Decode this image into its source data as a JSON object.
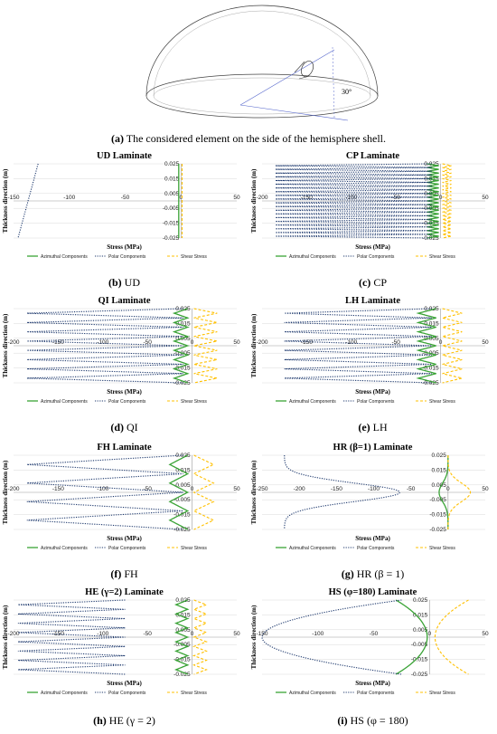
{
  "figure": {
    "main_caption_label": "(a)",
    "main_caption_text": " The considered element on the side of the hemisphere shell.",
    "angle_label": "30°",
    "colors": {
      "azimuthal": "#3aa336",
      "polar": "#1f3a6e",
      "shear": "#ffc000",
      "grid": "#d9d9d9"
    }
  },
  "chart_data": [
    {
      "id": "b",
      "caption_label": "(b)",
      "caption_text": " UD",
      "title": "UD Laminate",
      "type": "line",
      "xlabel": "Stress (MPa)",
      "ylabel": "Thickness direction (m)",
      "xlim": [
        -150,
        50
      ],
      "ylim": [
        -0.025,
        0.025
      ],
      "xticks": [
        "-150",
        "-100",
        "-50",
        "0",
        "50"
      ],
      "yticks": [
        "0.025",
        "0.015",
        "0.005",
        "-0.005",
        "-0.015",
        "-0.025"
      ],
      "legend": [
        "Azimuthal Components",
        "Polar Components",
        "Shear Stress"
      ],
      "series": [
        {
          "name": "Azimuthal Components",
          "profile": "const",
          "value": -2
        },
        {
          "name": "Polar Components",
          "profile": "linear",
          "x_at_top": -128,
          "x_at_bottom": -146
        },
        {
          "name": "Shear Stress",
          "profile": "const",
          "value": 1
        }
      ]
    },
    {
      "id": "c",
      "caption_label": "(c)",
      "caption_text": " CP",
      "title": "CP Laminate",
      "type": "line",
      "xlabel": "Stress (MPa)",
      "ylabel": "Thickness direction (m)",
      "xlim": [
        -200,
        50
      ],
      "ylim": [
        -0.025,
        0.025
      ],
      "xticks": [
        "-200",
        "-150",
        "-100",
        "-50",
        "0",
        "50"
      ],
      "yticks": [
        "0.025",
        "0.015",
        "0.005",
        "-0.005",
        "-0.015",
        "-0.025"
      ],
      "legend": [
        "Azimuthal Components",
        "Polar Components",
        "Shear Stress"
      ],
      "series": [
        {
          "name": "Azimuthal Components",
          "profile": "zigzag",
          "base": -15,
          "peak": -2,
          "plies": 20
        },
        {
          "name": "Polar Components",
          "profile": "zigzag",
          "base": -10,
          "peak": -185,
          "plies": 20
        },
        {
          "name": "Shear Stress",
          "profile": "zigzag",
          "base": 2,
          "peak": 12,
          "plies": 20
        }
      ]
    },
    {
      "id": "d",
      "caption_label": "(d)",
      "caption_text": " QI",
      "title": "QI Laminate",
      "type": "line",
      "xlabel": "Stress (MPa)",
      "ylabel": "Thickness direction (m)",
      "xlim": [
        -200,
        50
      ],
      "ylim": [
        -0.025,
        0.025
      ],
      "xticks": [
        "-200",
        "-150",
        "-100",
        "-50",
        "0",
        "50"
      ],
      "yticks": [
        "0.025",
        "0.015",
        "0.005",
        "-0.005",
        "-0.015",
        "-0.025"
      ],
      "legend": [
        "Azimuthal Components",
        "Polar Components",
        "Shear Stress"
      ],
      "series": [
        {
          "name": "Azimuthal Components",
          "profile": "zigzag",
          "base": -5,
          "peak": -20,
          "plies": 8
        },
        {
          "name": "Polar Components",
          "profile": "zigzag",
          "base": -10,
          "peak": -185,
          "plies": 8
        },
        {
          "name": "Shear Stress",
          "profile": "zigzag",
          "base": 2,
          "peak": 28,
          "plies": 8
        }
      ]
    },
    {
      "id": "e",
      "caption_label": "(e)",
      "caption_text": " LH",
      "title": "LH Laminate",
      "type": "line",
      "xlabel": "Stress (MPa)",
      "ylabel": "Thickness direction (m)",
      "xlim": [
        -200,
        50
      ],
      "ylim": [
        -0.025,
        0.025
      ],
      "xticks": [
        "-200",
        "-150",
        "-100",
        "-50",
        "0",
        "50"
      ],
      "yticks": [
        "0.025",
        "0.015",
        "0.005",
        "-0.005",
        "-0.015",
        "-0.025"
      ],
      "legend": [
        "Azimuthal Components",
        "Polar Components",
        "Shear Stress"
      ],
      "series": [
        {
          "name": "Azimuthal Components",
          "profile": "zigzag",
          "base": -5,
          "peak": -25,
          "plies": 8
        },
        {
          "name": "Polar Components",
          "profile": "zigzag",
          "base": -10,
          "peak": -175,
          "plies": 8
        },
        {
          "name": "Shear Stress",
          "profile": "zigzag",
          "base": 2,
          "peak": 24,
          "plies": 8
        }
      ]
    },
    {
      "id": "f",
      "caption_label": "(f)",
      "caption_text": " FH",
      "title": "FH Laminate",
      "type": "line",
      "xlabel": "Stress (MPa)",
      "ylabel": "Thickness direction (m)",
      "xlim": [
        -200,
        50
      ],
      "ylim": [
        -0.025,
        0.025
      ],
      "xticks": [
        "-200",
        "-150",
        "-100",
        "-50",
        "0",
        "50"
      ],
      "yticks": [
        "0.025",
        "0.015",
        "0.005",
        "-0.005",
        "-0.015",
        "-0.025"
      ],
      "legend": [
        "Azimuthal Components",
        "Polar Components",
        "Shear Stress"
      ],
      "series": [
        {
          "name": "Azimuthal Components",
          "profile": "zigzag",
          "base": -5,
          "peak": -25,
          "plies": 4
        },
        {
          "name": "Polar Components",
          "profile": "zigzag",
          "base": -10,
          "peak": -185,
          "plies": 4
        },
        {
          "name": "Shear Stress",
          "profile": "zigzag",
          "base": 2,
          "peak": 24,
          "plies": 4
        }
      ]
    },
    {
      "id": "g",
      "caption_label": "(g)",
      "caption_text": " HR (β = 1)",
      "title": "HR (β=1) Laminate",
      "type": "line",
      "xlabel": "Stress (MPa)",
      "ylabel": "Thickness direction (m)",
      "xlim": [
        -250,
        50
      ],
      "ylim": [
        -0.025,
        0.025
      ],
      "xticks": [
        "-250",
        "-200",
        "-150",
        "-100",
        "-50",
        "0",
        "50"
      ],
      "yticks": [
        "0.025",
        "0.015",
        "0.005",
        "-0.005",
        "-0.015",
        "-0.025"
      ],
      "legend": [
        "Azimuthal Components",
        "Polar Components",
        "Shear Stress"
      ],
      "series": [
        {
          "name": "Azimuthal Components",
          "profile": "bump",
          "base": 0,
          "peak": -12
        },
        {
          "name": "Polar Components",
          "profile": "bump",
          "base": -220,
          "peak": -65
        },
        {
          "name": "Shear Stress",
          "profile": "bump",
          "base": 0,
          "peak": 30
        }
      ]
    },
    {
      "id": "h",
      "caption_label": "(h)",
      "caption_text": " HE (γ = 2)",
      "title": "HE (γ=2) Laminate",
      "type": "line",
      "xlabel": "Stress (MPa)",
      "ylabel": "Thickness direction (m)",
      "xlim": [
        -200,
        50
      ],
      "ylim": [
        -0.025,
        0.025
      ],
      "xticks": [
        "-200",
        "-150",
        "-100",
        "-50",
        "0",
        "50"
      ],
      "yticks": [
        "0.025",
        "0.015",
        "0.005",
        "-0.005",
        "-0.015",
        "-0.025"
      ],
      "legend": [
        "Azimuthal Components",
        "Polar Components",
        "Shear Stress"
      ],
      "series": [
        {
          "name": "Azimuthal Components",
          "profile": "zigzag",
          "base": -5,
          "peak": -18,
          "plies": 8
        },
        {
          "name": "Polar Components",
          "profile": "zigzag",
          "base": -75,
          "peak": -195,
          "plies": 8
        },
        {
          "name": "Shear Stress",
          "profile": "zigzag",
          "base": 2,
          "peak": 16,
          "plies": 8
        }
      ]
    },
    {
      "id": "i",
      "caption_label": "(i)",
      "caption_text": " HS (φ = 180)",
      "title": "HS (φ=180) Laminate",
      "type": "line",
      "xlabel": "Stress (MPa)",
      "ylabel": "Thickness direction (m)",
      "xlim": [
        -150,
        50
      ],
      "ylim": [
        -0.025,
        0.025
      ],
      "xticks": [
        "-150",
        "-100",
        "-50",
        "0",
        "50"
      ],
      "yticks": [
        "0.025",
        "0.015",
        "0.005",
        "-0.005",
        "-0.015",
        "-0.025"
      ],
      "legend": [
        "Azimuthal Components",
        "Polar Components",
        "Shear Stress"
      ],
      "series": [
        {
          "name": "Azimuthal Components",
          "profile": "arc",
          "base": -30,
          "peak": -2
        },
        {
          "name": "Polar Components",
          "profile": "arc",
          "base": -25,
          "peak": -150
        },
        {
          "name": "Shear Stress",
          "profile": "arc",
          "base": 35,
          "peak": 5
        }
      ]
    }
  ]
}
